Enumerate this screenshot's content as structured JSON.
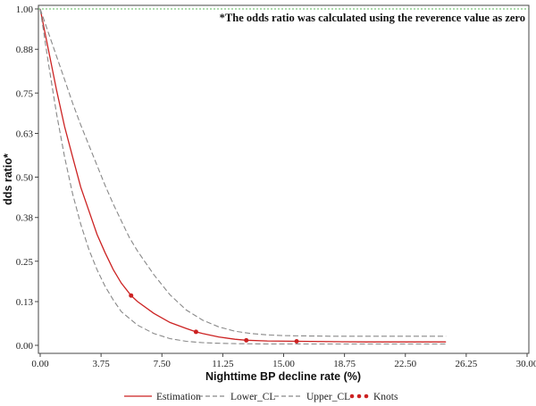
{
  "chart_data": {
    "type": "line",
    "title": "",
    "annotation": "*The odds ratio was calculated using the reverence value as zero",
    "xlabel": "Nighttime BP decline rate (%)",
    "ylabel": "dds ratio*",
    "xlim": [
      0,
      30
    ],
    "ylim": [
      0,
      1
    ],
    "x_ticks": [
      "0.00",
      "3.75",
      "7.50",
      "11.25",
      "15.00",
      "18.75",
      "22.50",
      "26.25",
      "30.00"
    ],
    "y_ticks": [
      "0.00",
      "0.13",
      "0.25",
      "0.38",
      "0.50",
      "0.63",
      "0.75",
      "0.88",
      "1.00"
    ],
    "reference_line": {
      "y": 1.0,
      "color": "#5cb85c",
      "style": "dotted"
    },
    "series": [
      {
        "name": "Estimation",
        "color": "#cc2222",
        "style": "solid",
        "x": [
          0,
          0.5,
          1,
          1.5,
          2,
          2.5,
          3,
          3.5,
          4,
          4.5,
          5,
          5.6,
          6,
          7,
          8,
          9,
          9.6,
          10,
          11,
          12,
          12.7,
          14,
          16,
          18,
          20,
          22,
          25
        ],
        "y": [
          1.0,
          0.88,
          0.76,
          0.65,
          0.56,
          0.47,
          0.4,
          0.33,
          0.275,
          0.225,
          0.185,
          0.148,
          0.13,
          0.095,
          0.068,
          0.05,
          0.04,
          0.035,
          0.025,
          0.018,
          0.015,
          0.013,
          0.012,
          0.011,
          0.01,
          0.01,
          0.01
        ]
      },
      {
        "name": "Lower_CL",
        "color": "#888888",
        "style": "dashed",
        "x": [
          0,
          0.5,
          1,
          1.5,
          2,
          2.5,
          3,
          3.5,
          4,
          4.5,
          5,
          6,
          7,
          8,
          9,
          10,
          11,
          12,
          14,
          16,
          18,
          20,
          22,
          25
        ],
        "y": [
          1.0,
          0.84,
          0.69,
          0.56,
          0.45,
          0.36,
          0.285,
          0.225,
          0.175,
          0.135,
          0.1,
          0.06,
          0.035,
          0.02,
          0.012,
          0.008,
          0.006,
          0.005,
          0.004,
          0.004,
          0.004,
          0.004,
          0.004,
          0.004
        ]
      },
      {
        "name": "Upper_CL",
        "color": "#888888",
        "style": "dashed",
        "x": [
          0,
          0.5,
          1,
          1.5,
          2,
          2.5,
          3,
          3.5,
          4,
          4.5,
          5,
          5.5,
          6,
          7,
          8,
          9,
          10,
          11,
          12,
          13,
          14,
          15,
          16,
          18,
          20,
          22,
          25
        ],
        "y": [
          1.0,
          0.93,
          0.86,
          0.79,
          0.72,
          0.655,
          0.595,
          0.535,
          0.475,
          0.42,
          0.37,
          0.32,
          0.28,
          0.21,
          0.15,
          0.105,
          0.075,
          0.055,
          0.042,
          0.035,
          0.031,
          0.029,
          0.028,
          0.027,
          0.027,
          0.027,
          0.027
        ]
      }
    ],
    "knots": {
      "name": "Knots",
      "color": "#cc2222",
      "x": [
        5.6,
        9.6,
        12.7,
        15.8
      ],
      "y": [
        0.148,
        0.04,
        0.015,
        0.012
      ]
    },
    "legend": [
      "Estimation",
      "Lower_CL",
      "Upper_CL",
      "Knots"
    ],
    "legend_position": "bottom",
    "grid": false
  }
}
